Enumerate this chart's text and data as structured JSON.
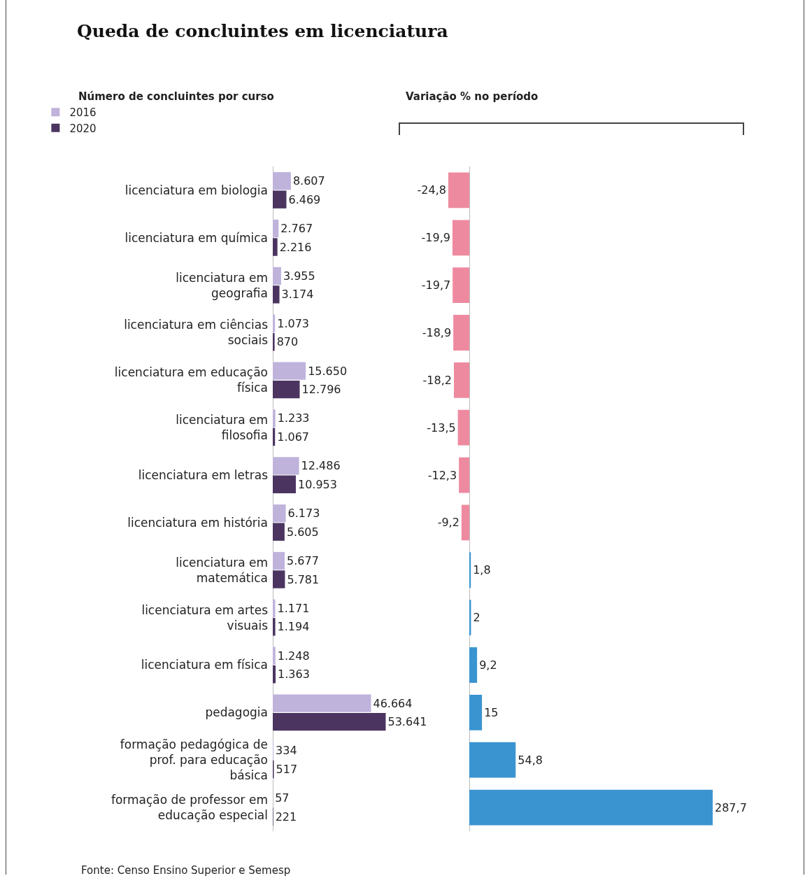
{
  "chart_data": [
    {
      "type": "bar",
      "orientation": "horizontal",
      "title": "Queda de concluintes em licenciatura",
      "subtitle": "Número de concluintes por curso",
      "categories": [
        "licenciatura em biologia",
        "licenciatura em química",
        "licenciatura em geografia",
        "licenciatura em ciências sociais",
        "licenciatura em educação física",
        "licenciatura em filosofia",
        "licenciatura em letras",
        "licenciatura em história",
        "licenciatura em matemática",
        "licenciatura em artes visuais",
        "licenciatura em física",
        "pedagogia",
        "formação pedagógica de prof. para educação básica",
        "formação de professor em educação especial"
      ],
      "series": [
        {
          "name": "2016",
          "color": "#bfb3dc",
          "values": [
            8607,
            2767,
            3955,
            1073,
            15650,
            1233,
            12486,
            6173,
            5677,
            1171,
            1248,
            46664,
            334,
            57
          ],
          "value_labels": [
            "8.607",
            "2.767",
            "3.955",
            "1.073",
            "15.650",
            "1.233",
            "12.486",
            "6.173",
            "5.677",
            "1.171",
            "1.248",
            "46.664",
            "334",
            "57"
          ]
        },
        {
          "name": "2020",
          "color": "#4b3560",
          "values": [
            6469,
            2216,
            3174,
            870,
            12796,
            1067,
            10953,
            5605,
            5781,
            1194,
            1363,
            53641,
            517,
            221
          ],
          "value_labels": [
            "6.469",
            "2.216",
            "3.174",
            "870",
            "12.796",
            "1.067",
            "10.953",
            "5.605",
            "5.781",
            "1.194",
            "1.363",
            "53.641",
            "517",
            "221"
          ]
        }
      ],
      "legend": "top left",
      "grid": false,
      "annotations": [
        "Fonte: Censo Ensino Superior e Semesp"
      ]
    },
    {
      "type": "bar",
      "orientation": "horizontal",
      "title": "Variação % no período",
      "categories": [
        null,
        null,
        null,
        null,
        null,
        null,
        null,
        null,
        null,
        null,
        null,
        null,
        null,
        null
      ],
      "values": [
        -24.8,
        -19.9,
        -19.7,
        -18.9,
        -18.2,
        -13.5,
        -12.3,
        -9.2,
        1.8,
        2,
        9.2,
        15,
        54.8,
        287.7
      ],
      "value_labels": [
        "-24,8",
        "-19,9",
        "-19,7",
        "-18,9",
        "-18,2",
        "-13,5",
        "-12,3",
        "-9,2",
        "1,8",
        "2",
        "9,2",
        "15",
        "54,8",
        "287,7"
      ],
      "colors": [
        "#ee8aa0",
        "#ee8aa0",
        "#ee8aa0",
        "#ee8aa0",
        "#ee8aa0",
        "#ee8aa0",
        "#ee8aa0",
        "#ee8aa0",
        "#3a94d0",
        "#3a94d0",
        "#3a94d0",
        "#3a94d0",
        "#3a94d0",
        "#3a94d0"
      ],
      "legend": false,
      "grid": false
    }
  ]
}
